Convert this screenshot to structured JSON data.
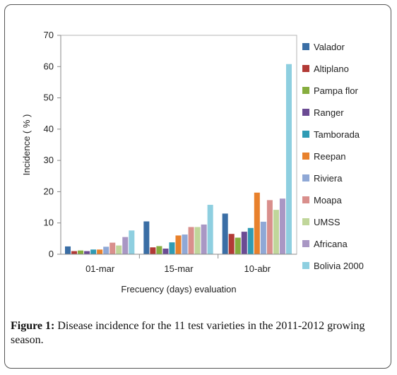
{
  "chart_data": {
    "type": "bar",
    "title": "",
    "xlabel": "Frecuency (days) evaluation",
    "ylabel": "Incidence ( % )",
    "ylim": [
      0,
      70
    ],
    "yticks": [
      "0",
      "10",
      "20",
      "30",
      "40",
      "50",
      "60",
      "70"
    ],
    "categories": [
      "01-mar",
      "15-mar",
      "10-abr"
    ],
    "grid": false,
    "legend_position": "right",
    "series": [
      {
        "name": "Valador",
        "color": "#3a6ea5",
        "values": [
          2.5,
          10.5,
          13.0
        ]
      },
      {
        "name": "Altiplano",
        "color": "#b23a36",
        "values": [
          1.0,
          2.2,
          6.5
        ]
      },
      {
        "name": "Pampa flor",
        "color": "#86ad3e",
        "values": [
          1.2,
          2.6,
          5.3
        ]
      },
      {
        "name": "Ranger",
        "color": "#6b4b93",
        "values": [
          1.0,
          1.8,
          7.2
        ]
      },
      {
        "name": "Tamborada",
        "color": "#2f9bb4",
        "values": [
          1.5,
          3.8,
          8.4
        ]
      },
      {
        "name": "Reepan",
        "color": "#e8812c",
        "values": [
          1.5,
          6.0,
          19.7
        ]
      },
      {
        "name": "Riviera",
        "color": "#8fa8d6",
        "values": [
          2.4,
          6.3,
          10.4
        ]
      },
      {
        "name": "Moapa",
        "color": "#d98f8c",
        "values": [
          3.7,
          8.7,
          17.3
        ]
      },
      {
        "name": "UMSS",
        "color": "#c0d69a",
        "values": [
          2.8,
          8.7,
          14.2
        ]
      },
      {
        "name": "Africana",
        "color": "#a997c4",
        "values": [
          5.5,
          9.5,
          17.8
        ]
      },
      {
        "name": "Bolivia 2000",
        "color": "#8ecfe0",
        "values": [
          7.6,
          15.8,
          60.8
        ]
      }
    ]
  },
  "caption": {
    "label": "Figure 1:",
    "text": " Disease incidence for the 11 test varieties in the 2011-2012 growing season."
  }
}
